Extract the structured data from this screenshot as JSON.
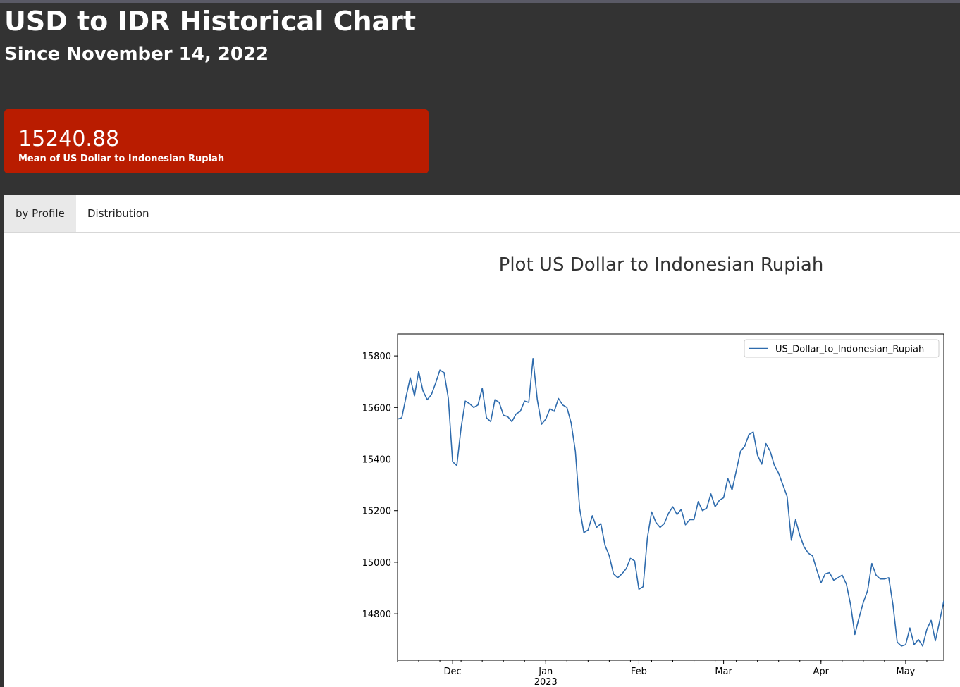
{
  "header": {
    "title": "USD to IDR Historical Chart",
    "subtitle": "Since November 14, 2022"
  },
  "metric": {
    "value": "15240.88",
    "label": "Mean of US Dollar to Indonesian Rupiah",
    "color": "#b91c00"
  },
  "tabs": [
    {
      "label": "by Profile",
      "active": true
    },
    {
      "label": "Distribution",
      "active": false
    }
  ],
  "chart_title": "Plot US Dollar to Indonesian Rupiah",
  "chart_data": {
    "type": "line",
    "start_date": "2022-11-14",
    "x_tick_labels": [
      "Dec",
      "Jan",
      "Feb",
      "Mar",
      "Apr",
      "May"
    ],
    "x_tick_sublabel": "2023",
    "y_ticks": [
      14800,
      15000,
      15200,
      15400,
      15600,
      15800
    ],
    "ylim": [
      14620,
      15885
    ],
    "legend_placement": "top-right",
    "grid": false,
    "series": [
      {
        "name": "US_Dollar_to_Indonesian_Rupiah",
        "color": "#2e6bad",
        "values": [
          15555,
          15560,
          15640,
          15715,
          15645,
          15740,
          15665,
          15630,
          15650,
          15695,
          15745,
          15735,
          15635,
          15390,
          15375,
          15520,
          15625,
          15615,
          15600,
          15610,
          15675,
          15560,
          15545,
          15630,
          15620,
          15570,
          15565,
          15545,
          15575,
          15585,
          15625,
          15620,
          15790,
          15630,
          15535,
          15555,
          15595,
          15585,
          15635,
          15610,
          15600,
          15540,
          15430,
          15210,
          15115,
          15125,
          15180,
          15135,
          15150,
          15065,
          15025,
          14955,
          14940,
          14955,
          14975,
          15015,
          15005,
          14895,
          14905,
          15095,
          15195,
          15155,
          15135,
          15150,
          15190,
          15215,
          15185,
          15205,
          15145,
          15165,
          15165,
          15235,
          15200,
          15210,
          15265,
          15215,
          15240,
          15250,
          15325,
          15280,
          15355,
          15430,
          15450,
          15495,
          15505,
          15415,
          15380,
          15460,
          15430,
          15375,
          15345,
          15300,
          15255,
          15085,
          15165,
          15105,
          15060,
          15035,
          15025,
          14970,
          14920,
          14955,
          14960,
          14930,
          14940,
          14950,
          14915,
          14835,
          14720,
          14785,
          14845,
          14890,
          14995,
          14950,
          14935,
          14935,
          14940,
          14835,
          14690,
          14675,
          14680,
          14745,
          14680,
          14700,
          14675,
          14740,
          14775,
          14695,
          14770,
          14850
        ]
      }
    ]
  }
}
